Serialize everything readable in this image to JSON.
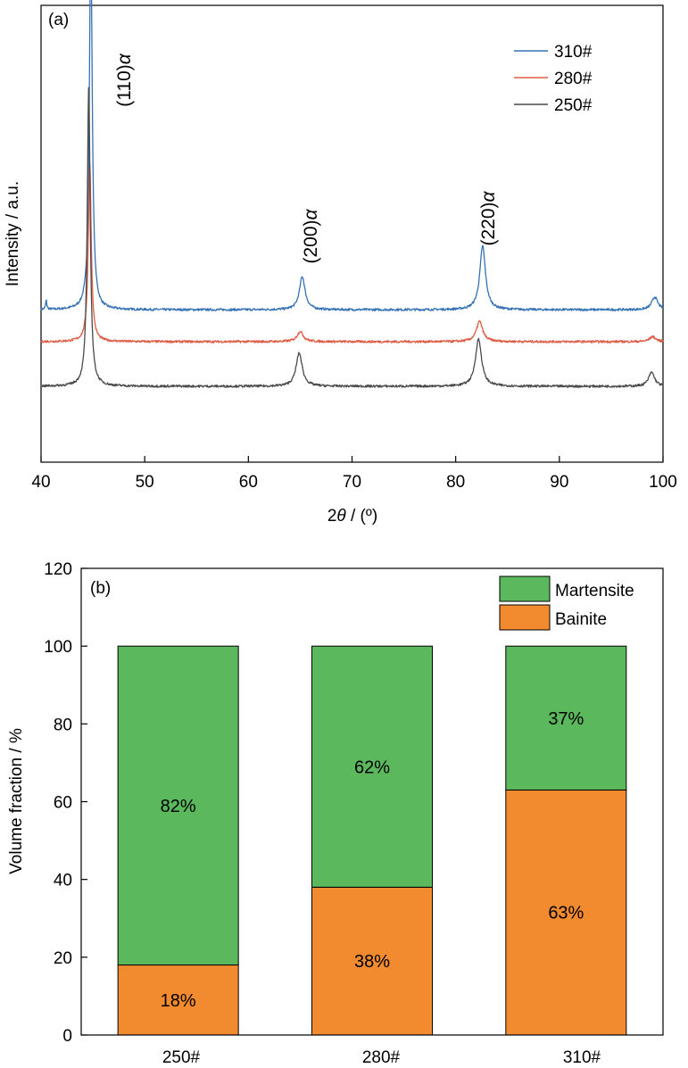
{
  "chart_data": [
    {
      "panel": "(a)",
      "type": "line",
      "xlabel_prefix": "2",
      "xlabel_symbol": "θ",
      "xlabel_suffix": " / (º)",
      "ylabel": "Intensity / a.u.",
      "xlim": [
        40,
        100
      ],
      "xticks": [
        "40",
        "50",
        "60",
        "70",
        "80",
        "90",
        "100"
      ],
      "yticks": [],
      "grid": false,
      "legend_position": "top-right",
      "series": [
        {
          "name": "310#",
          "color": "#3572b5",
          "baseline": 0.6,
          "noise": 0.009,
          "peaks": [
            {
              "x": 40.5,
              "h": 0.07,
              "w": 0.07
            },
            {
              "x": 44.8,
              "h": 2.9,
              "w": 0.17
            },
            {
              "x": 65.2,
              "h": 0.26,
              "w": 0.33
            },
            {
              "x": 82.6,
              "h": 0.5,
              "w": 0.33
            },
            {
              "x": 99.2,
              "h": 0.1,
              "w": 0.35
            }
          ]
        },
        {
          "name": "280#",
          "color": "#e05b44",
          "baseline": 0.35,
          "noise": 0.009,
          "peaks": [
            {
              "x": 44.7,
              "h": 1.4,
              "w": 0.17
            },
            {
              "x": 65.0,
              "h": 0.08,
              "w": 0.36
            },
            {
              "x": 82.3,
              "h": 0.16,
              "w": 0.36
            },
            {
              "x": 99.0,
              "h": 0.04,
              "w": 0.35
            }
          ]
        },
        {
          "name": "250#",
          "color": "#4a4a4a",
          "baseline": 0.0,
          "noise": 0.009,
          "peaks": [
            {
              "x": 44.6,
              "h": 2.35,
              "w": 0.17
            },
            {
              "x": 64.9,
              "h": 0.26,
              "w": 0.36
            },
            {
              "x": 82.2,
              "h": 0.37,
              "w": 0.36
            },
            {
              "x": 98.9,
              "h": 0.11,
              "w": 0.35
            }
          ]
        }
      ],
      "annotations": [
        {
          "text": "(110)",
          "symbol": "α",
          "x": 46.3
        },
        {
          "text": "(200)",
          "symbol": "α",
          "x": 65.4
        },
        {
          "text": "(220)",
          "symbol": "α",
          "x": 82.8
        }
      ]
    },
    {
      "panel": "(b)",
      "type": "bar",
      "stacked": true,
      "ylabel": "Volume fraction / %",
      "xlabel": "",
      "ylim": [
        0,
        120
      ],
      "yticks": [
        "0",
        "20",
        "40",
        "60",
        "80",
        "100",
        "120"
      ],
      "categories": [
        "250#",
        "280#",
        "310#"
      ],
      "grid": false,
      "legend_position": "top-right",
      "series": [
        {
          "name": "Bainite",
          "color": "#f28a30",
          "values": [
            18,
            38,
            63
          ],
          "labels": [
            "18%",
            "38%",
            "63%"
          ]
        },
        {
          "name": "Martensite",
          "color": "#5cb85c",
          "values": [
            82,
            62,
            37
          ],
          "labels": [
            "82%",
            "62%",
            "37%"
          ]
        }
      ],
      "legend_order": [
        "Martensite",
        "Bainite"
      ]
    }
  ]
}
